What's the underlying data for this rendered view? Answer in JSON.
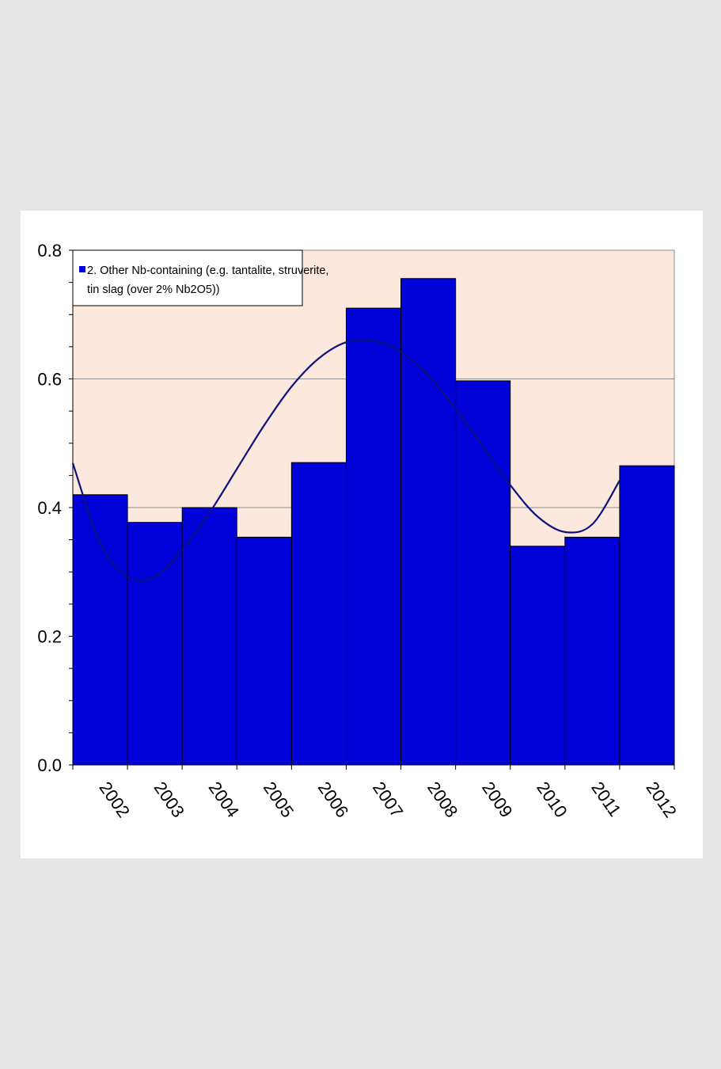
{
  "chart_data": {
    "type": "bar",
    "categories": [
      "2002",
      "2003",
      "2004",
      "2005",
      "2006",
      "2007",
      "2008",
      "2009",
      "2010",
      "2011",
      "2012"
    ],
    "series": [
      {
        "name": "2. Other Nb-containing (e.g. tantalite, struverite, tin slag (over 2% Nb2O5))",
        "values": [
          0.42,
          0.377,
          0.4,
          0.354,
          0.47,
          0.71,
          0.756,
          0.597,
          0.34,
          0.354,
          0.465
        ]
      }
    ],
    "trendline": {
      "type": "polynomial",
      "x": [
        2001.5,
        2002.0,
        2002.5,
        2003.0,
        2003.5,
        2004.0,
        2004.5,
        2005.0,
        2005.5,
        2006.0,
        2006.5,
        2007.0,
        2007.5,
        2008.0,
        2008.5,
        2009.0,
        2009.5,
        2010.0,
        2010.5,
        2011.0,
        2011.5
      ],
      "values": [
        0.469,
        0.345,
        0.292,
        0.292,
        0.335,
        0.392,
        0.46,
        0.528,
        0.588,
        0.632,
        0.657,
        0.659,
        0.642,
        0.605,
        0.554,
        0.495,
        0.435,
        0.386,
        0.362,
        0.374,
        0.442
      ]
    },
    "legend": {
      "line1": "2. Other Nb-containing (e.g. tantalite, struverite,",
      "line2": "tin slag (over 2% Nb2O5))"
    },
    "yticks": [
      "0.0",
      "0.2",
      "0.4",
      "0.6",
      "0.8"
    ],
    "ylim": [
      0,
      0.8
    ],
    "ymajor": 0.2,
    "yminor": 0.05,
    "title": "",
    "xlabel": "",
    "ylabel": "",
    "grid": true,
    "legend_position": "top-left",
    "colors": {
      "bar": "#0000d8",
      "bar_edge": "#000000",
      "trend": "#0b127f",
      "plot_bg": "#fce8dc",
      "grid": "#8c8c8c",
      "panel": "#ffffff",
      "page": "#e6e6e6"
    }
  }
}
